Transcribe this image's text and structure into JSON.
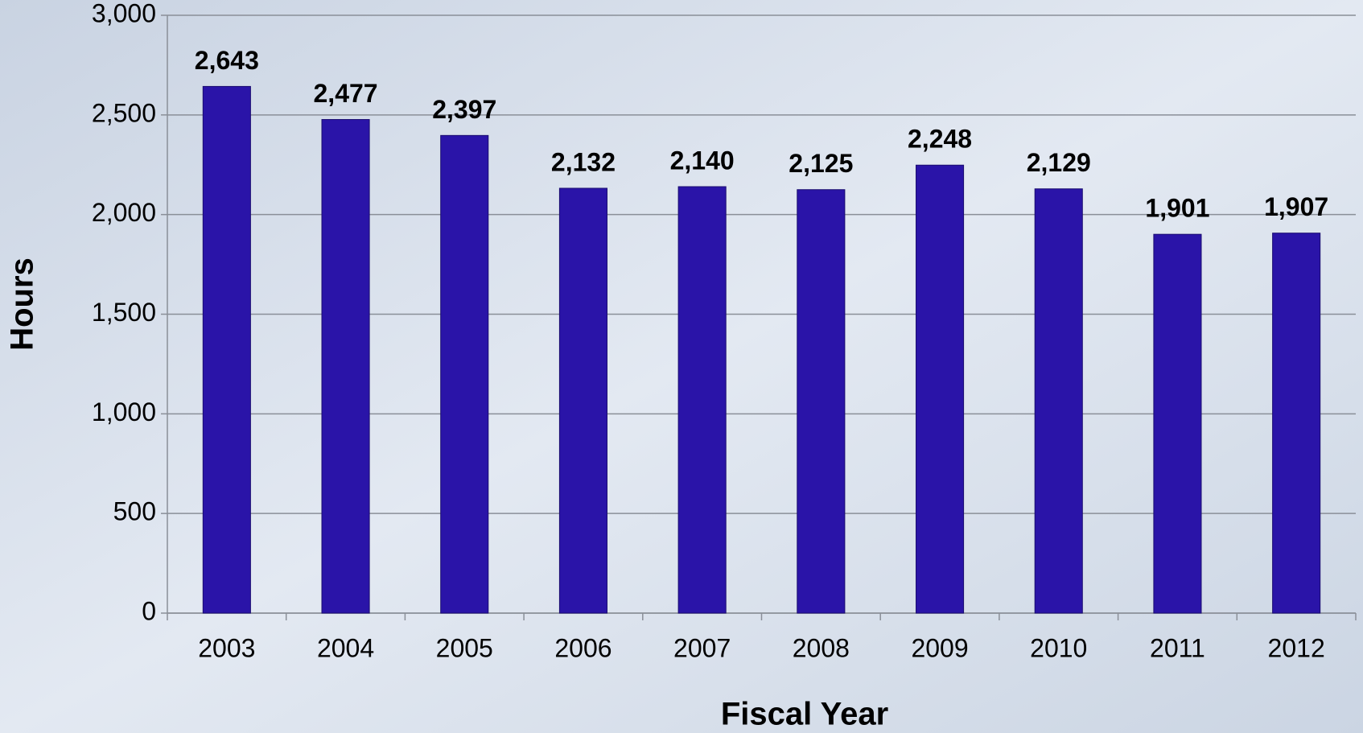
{
  "chart_data": {
    "type": "bar",
    "x_label": "Fiscal Year",
    "y_label": "Hours",
    "categories": [
      "2003",
      "2004",
      "2005",
      "2006",
      "2007",
      "2008",
      "2009",
      "2010",
      "2011",
      "2012"
    ],
    "values": [
      2643,
      2477,
      2397,
      2132,
      2140,
      2125,
      2248,
      2129,
      1901,
      1907
    ],
    "value_labels": [
      "2,643",
      "2,477",
      "2,397",
      "2,132",
      "2,140",
      "2,125",
      "2,248",
      "2,129",
      "1,901",
      "1,907"
    ],
    "color": "#2a14a8",
    "ylim": [
      0,
      3000
    ],
    "yticks": [
      0,
      500,
      {
        "value": 1000,
        "label": "1,000"
      },
      {
        "value": 1500,
        "label": "1,500"
      },
      {
        "value": 2000,
        "label": "2,000"
      },
      {
        "value": 2500,
        "label": "2,500"
      },
      {
        "value": 3000,
        "label": "3,000"
      }
    ],
    "grid": true
  }
}
